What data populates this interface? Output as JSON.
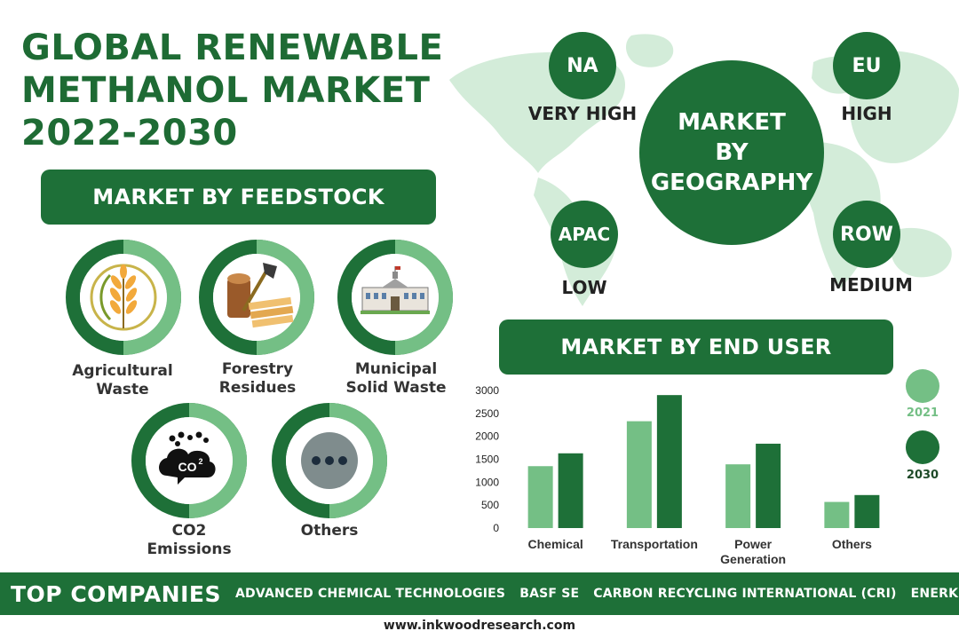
{
  "title": {
    "line1": "GLOBAL RENEWABLE",
    "line2": "METHANOL MARKET",
    "line3": "2022-2030"
  },
  "feedstock": {
    "heading": "MARKET BY FEEDSTOCK",
    "items": [
      {
        "label1": "Agricultural",
        "label2": "Waste",
        "icon": "wheat-icon"
      },
      {
        "label1": "Forestry",
        "label2": "Residues",
        "icon": "logs-axe-icon"
      },
      {
        "label1": "Municipal",
        "label2": "Solid Waste",
        "icon": "building-icon"
      },
      {
        "label1": "CO2",
        "label2": "Emissions",
        "icon": "co2-cloud-icon",
        "co2_text": "CO",
        "co2_sup": "2"
      },
      {
        "label1": "Others",
        "label2": "",
        "icon": "more-dots-icon"
      }
    ]
  },
  "geography": {
    "center_line1": "MARKET",
    "center_line2": "BY",
    "center_line3": "GEOGRAPHY",
    "regions": [
      {
        "code": "NA",
        "level": "VERY HIGH"
      },
      {
        "code": "EU",
        "level": "HIGH"
      },
      {
        "code": "APAC",
        "level": "LOW"
      },
      {
        "code": "ROW",
        "level": "MEDIUM"
      }
    ]
  },
  "end_user": {
    "heading": "MARKET BY END USER"
  },
  "chart_data": {
    "type": "bar",
    "categories": [
      "Chemical",
      "Transportation",
      "Power Generation",
      "Others"
    ],
    "series": [
      {
        "name": "2021",
        "values": [
          1350,
          2330,
          1390,
          570
        ],
        "color": "#74bf85"
      },
      {
        "name": "2030",
        "values": [
          1630,
          2900,
          1840,
          720
        ],
        "color": "#1e7038"
      }
    ],
    "ylim": [
      0,
      3000
    ],
    "yticks": [
      0,
      500,
      1000,
      1500,
      2000,
      2500,
      3000
    ],
    "grid": false,
    "legend": "right"
  },
  "companies": {
    "heading": "TOP COMPANIES",
    "list": [
      "ADVANCED CHEMICAL TECHNOLOGIES",
      "BASF SE",
      "CARBON RECYCLING INTERNATIONAL (CRI)",
      "ENERKEM"
    ]
  },
  "website": "www.inkwoodresearch.com",
  "colors": {
    "dark_green": "#1e7038",
    "light_green": "#74bf85",
    "map_green": "#d3ecd9"
  }
}
